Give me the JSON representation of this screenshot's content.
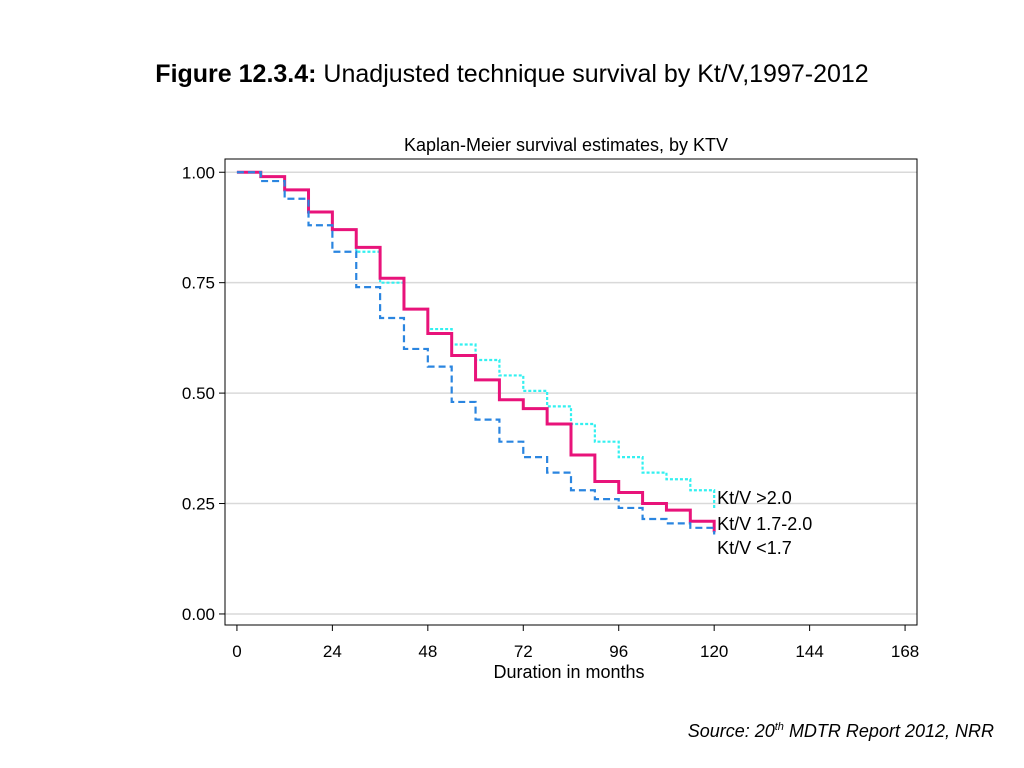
{
  "figure": {
    "label": "Figure 12.3.4:",
    "title": "Unadjusted technique survival by Kt/V,1997-2012"
  },
  "source": {
    "prefix": "Source: 20",
    "superscript": "th",
    "suffix": " MDTR Report 2012, NRR"
  },
  "chart_data": {
    "type": "line",
    "title": "Kaplan-Meier survival estimates, by KTV",
    "xlabel": "Duration in months",
    "ylabel": "",
    "xlim": [
      -3,
      171
    ],
    "ylim": [
      -0.025,
      1.03
    ],
    "xticks": [
      0,
      24,
      48,
      72,
      96,
      120,
      144,
      168
    ],
    "yticks": [
      0.0,
      0.25,
      0.5,
      0.75,
      1.0
    ],
    "ytick_labels": [
      "0.00",
      "0.25",
      "0.50",
      "0.75",
      "1.00"
    ],
    "grid": "horizontal",
    "legend": "end-of-line labels",
    "series": [
      {
        "name": "Kt/V >2.0",
        "color": "#33f0f0",
        "style": "dotted",
        "x": [
          0,
          3,
          6,
          12,
          18,
          24,
          30,
          36,
          42,
          48,
          54,
          60,
          66,
          72,
          78,
          84,
          90,
          96,
          102,
          108,
          114,
          120
        ],
        "y": [
          1.0,
          1.0,
          0.99,
          0.96,
          0.91,
          0.87,
          0.82,
          0.75,
          0.69,
          0.645,
          0.61,
          0.575,
          0.54,
          0.505,
          0.47,
          0.43,
          0.39,
          0.355,
          0.32,
          0.305,
          0.28,
          0.24
        ]
      },
      {
        "name": "Kt/V 1.7-2.0",
        "color": "#e8137a",
        "style": "solid",
        "x": [
          0,
          3,
          6,
          12,
          18,
          24,
          30,
          36,
          42,
          48,
          54,
          60,
          66,
          72,
          78,
          84,
          90,
          96,
          102,
          108,
          114,
          120
        ],
        "y": [
          1.0,
          1.0,
          0.99,
          0.96,
          0.91,
          0.87,
          0.83,
          0.76,
          0.69,
          0.635,
          0.585,
          0.53,
          0.485,
          0.465,
          0.43,
          0.36,
          0.3,
          0.275,
          0.25,
          0.235,
          0.21,
          0.185
        ]
      },
      {
        "name": "Kt/V <1.7",
        "color": "#2a85e0",
        "style": "dashed",
        "x": [
          0,
          3,
          6,
          12,
          18,
          24,
          30,
          36,
          42,
          48,
          54,
          60,
          66,
          72,
          78,
          84,
          90,
          96,
          102,
          108,
          114,
          120
        ],
        "y": [
          1.0,
          1.0,
          0.98,
          0.94,
          0.88,
          0.82,
          0.74,
          0.67,
          0.6,
          0.56,
          0.48,
          0.44,
          0.39,
          0.355,
          0.32,
          0.28,
          0.26,
          0.24,
          0.215,
          0.205,
          0.195,
          0.18
        ]
      }
    ]
  }
}
